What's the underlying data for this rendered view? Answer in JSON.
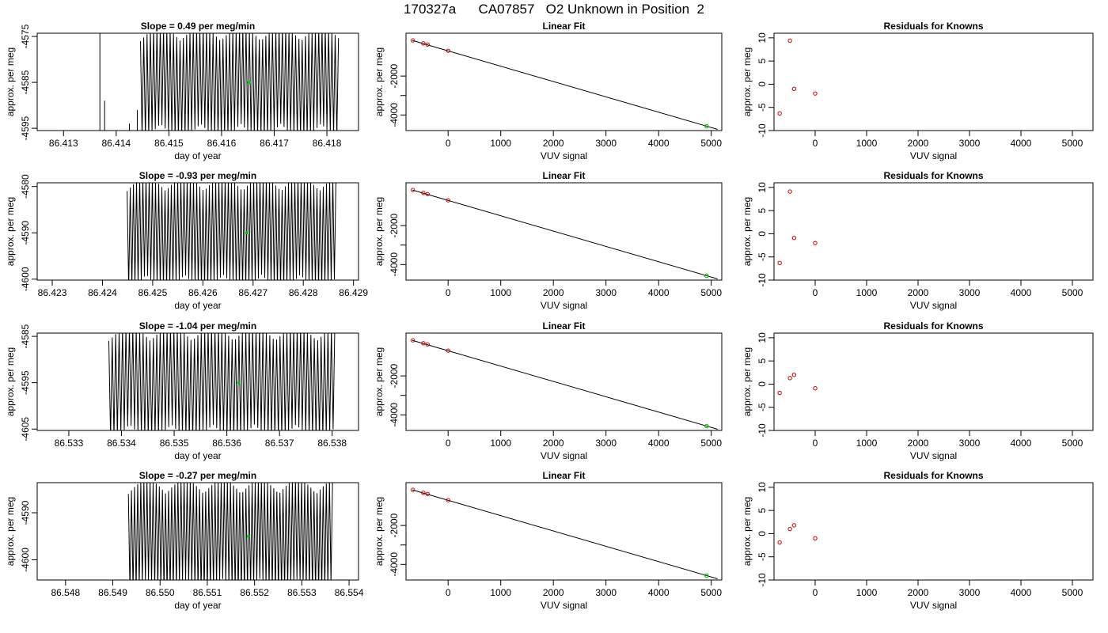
{
  "figure": {
    "title": "170327a      CA07857   O2 Unknown in Position  2"
  },
  "colors": {
    "trace": "#000000",
    "known_points": "#cc0000",
    "unknown_point": "#00cc00",
    "fit_line": "#000000",
    "axes": "#000000"
  },
  "chart_data": [
    {
      "type": "line",
      "row": 1,
      "panel": "time-series",
      "title": "Slope =  0.49  per meg/min",
      "xlabel": "day of year",
      "ylabel": "approx. per meg",
      "xlim": [
        86.4125,
        86.4186
      ],
      "ylim": [
        -4595.5,
        -4574.3
      ],
      "xticks": [
        86.413,
        86.414,
        86.415,
        86.416,
        86.417,
        86.418
      ],
      "xtick_labels": [
        "86.413",
        "86.414",
        "86.415",
        "86.416",
        "86.417",
        "86.418"
      ],
      "yticks": [
        -4595,
        -4585,
        -4575
      ],
      "ytick_labels": [
        "-4595",
        "-4585",
        "-4575"
      ],
      "trace": {
        "x_start": 86.41446,
        "x_end": 86.41822,
        "cycles": 60,
        "center": -4585,
        "amplitude": 12,
        "early_spikes": [
          {
            "x": 86.41369,
            "y_top": -4570,
            "y_bottom": -4620
          },
          {
            "x": 86.41378,
            "y_top": -4589,
            "y_bottom": -4600
          },
          {
            "x": 86.41396,
            "y_top": -4597,
            "y_bottom": -4620
          },
          {
            "x": 86.41425,
            "y_top": -4594,
            "y_bottom": -4600
          },
          {
            "x": 86.4144,
            "y_top": -4591,
            "y_bottom": -4598
          }
        ]
      },
      "marker": {
        "x": 86.41652,
        "y": -4585
      }
    },
    {
      "type": "scatter",
      "row": 1,
      "panel": "linear-fit",
      "title": "Linear Fit",
      "xlabel": "VUV signal",
      "ylabel": "approx. per meg",
      "xlim": [
        -800,
        5200
      ],
      "ylim": [
        -4800,
        200
      ],
      "xticks": [
        0,
        1000,
        2000,
        3000,
        4000,
        5000
      ],
      "xtick_labels": [
        "0",
        "1000",
        "2000",
        "3000",
        "4000",
        "5000"
      ],
      "yticks": [
        -4000,
        -3000,
        -2000
      ],
      "ytick_labels": [
        "-4000",
        "",
        "-2000"
      ],
      "fit_line": {
        "x": [
          -680,
          5120
        ],
        "y": [
          -170,
          -4740
        ]
      },
      "knowns": [
        {
          "x": -670,
          "y": -170
        },
        {
          "x": -470,
          "y": -320
        },
        {
          "x": -390,
          "y": -380
        },
        {
          "x": 0,
          "y": -700
        }
      ],
      "unknown": {
        "x": 4910,
        "y": -4575
      }
    },
    {
      "type": "scatter",
      "row": 1,
      "panel": "residuals",
      "title": "Residuals for Knowns",
      "xlabel": "VUV signal",
      "ylabel": "approx. per meg",
      "xlim": [
        -800,
        5400
      ],
      "ylim": [
        -10,
        11
      ],
      "xticks": [
        0,
        1000,
        2000,
        3000,
        4000,
        5000
      ],
      "xtick_labels": [
        "0",
        "1000",
        "2000",
        "3000",
        "4000",
        "5000"
      ],
      "yticks": [
        -10,
        -5,
        0,
        5,
        10
      ],
      "ytick_labels": [
        "-10",
        "-5",
        "0",
        "5",
        "10"
      ],
      "points": [
        {
          "x": -690,
          "y": -6.3
        },
        {
          "x": -490,
          "y": 9.4
        },
        {
          "x": -410,
          "y": -1
        },
        {
          "x": 0,
          "y": -2
        }
      ]
    },
    {
      "type": "line",
      "row": 2,
      "panel": "time-series",
      "title": "Slope =  -0.93  per meg/min",
      "xlabel": "day of year",
      "ylabel": "approx. per meg",
      "xlim": [
        86.4227,
        86.4291
      ],
      "ylim": [
        -4600.2,
        -4579.2
      ],
      "xticks": [
        86.423,
        86.424,
        86.425,
        86.426,
        86.427,
        86.428,
        86.429
      ],
      "xtick_labels": [
        "86.423",
        "86.424",
        "86.425",
        "86.426",
        "86.427",
        "86.428",
        "86.429"
      ],
      "yticks": [
        -4600,
        -4590,
        -4580
      ],
      "ytick_labels": [
        "-4600",
        "-4590",
        "-4580"
      ],
      "trace": {
        "x_start": 86.42449,
        "x_end": 86.42865,
        "cycles": 66,
        "center": -4590,
        "amplitude": 12,
        "early_spikes": []
      },
      "marker": {
        "x": 86.42688,
        "y": -4590
      }
    },
    {
      "type": "scatter",
      "row": 2,
      "panel": "linear-fit",
      "title": "Linear Fit",
      "xlabel": "VUV signal",
      "ylabel": "approx. per meg",
      "xlim": [
        -800,
        5200
      ],
      "ylim": [
        -4800,
        200
      ],
      "xticks": [
        0,
        1000,
        2000,
        3000,
        4000,
        5000
      ],
      "xtick_labels": [
        "0",
        "1000",
        "2000",
        "3000",
        "4000",
        "5000"
      ],
      "yticks": [
        -4000,
        -3000,
        -2000
      ],
      "ytick_labels": [
        "-4000",
        "",
        "-2000"
      ],
      "fit_line": {
        "x": [
          -680,
          5120
        ],
        "y": [
          -170,
          -4740
        ]
      },
      "knowns": [
        {
          "x": -670,
          "y": -170
        },
        {
          "x": -470,
          "y": -320
        },
        {
          "x": -390,
          "y": -380
        },
        {
          "x": 0,
          "y": -700
        }
      ],
      "unknown": {
        "x": 4910,
        "y": -4575
      }
    },
    {
      "type": "scatter",
      "row": 2,
      "panel": "residuals",
      "title": "Residuals for Knowns",
      "xlabel": "VUV signal",
      "ylabel": "approx. per meg",
      "xlim": [
        -800,
        5400
      ],
      "ylim": [
        -10,
        11
      ],
      "xticks": [
        0,
        1000,
        2000,
        3000,
        4000,
        5000
      ],
      "xtick_labels": [
        "0",
        "1000",
        "2000",
        "3000",
        "4000",
        "5000"
      ],
      "yticks": [
        -10,
        -5,
        0,
        5,
        10
      ],
      "ytick_labels": [
        "-10",
        "-5",
        "0",
        "5",
        "10"
      ],
      "points": [
        {
          "x": -690,
          "y": -6.3
        },
        {
          "x": -490,
          "y": 9.1
        },
        {
          "x": -410,
          "y": -0.9
        },
        {
          "x": 0,
          "y": -2
        }
      ]
    },
    {
      "type": "line",
      "row": 3,
      "panel": "time-series",
      "title": "Slope =  -1.04  per meg/min",
      "xlabel": "day of year",
      "ylabel": "approx. per meg",
      "xlim": [
        86.5324,
        86.5385
      ],
      "ylim": [
        -4605.3,
        -4584.3
      ],
      "xticks": [
        86.533,
        86.534,
        86.535,
        86.536,
        86.537,
        86.538
      ],
      "xtick_labels": [
        "86.533",
        "86.534",
        "86.535",
        "86.536",
        "86.537",
        "86.538"
      ],
      "yticks": [
        -4605,
        -4595,
        -4585
      ],
      "ytick_labels": [
        "-4605",
        "-4595",
        "-4585"
      ],
      "trace": {
        "x_start": 86.53376,
        "x_end": 86.53805,
        "cycles": 66,
        "center": -4595,
        "amplitude": 12,
        "early_spikes": []
      },
      "marker": {
        "x": 86.53622,
        "y": -4595
      }
    },
    {
      "type": "scatter",
      "row": 3,
      "panel": "linear-fit",
      "title": "Linear Fit",
      "xlabel": "VUV signal",
      "ylabel": "approx. per meg",
      "xlim": [
        -800,
        5200
      ],
      "ylim": [
        -4800,
        200
      ],
      "xticks": [
        0,
        1000,
        2000,
        3000,
        4000,
        5000
      ],
      "xtick_labels": [
        "0",
        "1000",
        "2000",
        "3000",
        "4000",
        "5000"
      ],
      "yticks": [
        -4000,
        -3000,
        -2000
      ],
      "ytick_labels": [
        "-4000",
        "",
        "-2000"
      ],
      "fit_line": {
        "x": [
          -680,
          5120
        ],
        "y": [
          -170,
          -4740
        ]
      },
      "knowns": [
        {
          "x": -670,
          "y": -170
        },
        {
          "x": -470,
          "y": -320
        },
        {
          "x": -390,
          "y": -380
        },
        {
          "x": 0,
          "y": -700
        }
      ],
      "unknown": {
        "x": 4910,
        "y": -4575
      }
    },
    {
      "type": "scatter",
      "row": 3,
      "panel": "residuals",
      "title": "Residuals for Knowns",
      "xlabel": "VUV signal",
      "ylabel": "approx. per meg",
      "xlim": [
        -800,
        5400
      ],
      "ylim": [
        -10,
        11
      ],
      "xticks": [
        0,
        1000,
        2000,
        3000,
        4000,
        5000
      ],
      "xtick_labels": [
        "0",
        "1000",
        "2000",
        "3000",
        "4000",
        "5000"
      ],
      "yticks": [
        -10,
        -5,
        0,
        5,
        10
      ],
      "ytick_labels": [
        "-10",
        "-5",
        "0",
        "5",
        "10"
      ],
      "points": [
        {
          "x": -690,
          "y": -1.9
        },
        {
          "x": -490,
          "y": 1.3
        },
        {
          "x": -410,
          "y": 2
        },
        {
          "x": 0,
          "y": -0.9
        }
      ]
    },
    {
      "type": "line",
      "row": 4,
      "panel": "time-series",
      "title": "Slope =  -0.27  per meg/min",
      "xlabel": "day of year",
      "ylabel": "approx. per meg",
      "xlim": [
        86.5474,
        86.5542
      ],
      "ylim": [
        -4604.3,
        -4583.6
      ],
      "xticks": [
        86.548,
        86.549,
        86.55,
        86.551,
        86.552,
        86.553,
        86.554
      ],
      "xtick_labels": [
        "86.548",
        "86.549",
        "86.550",
        "86.551",
        "86.552",
        "86.553",
        "86.554"
      ],
      "yticks": [
        -4600,
        -4590
      ],
      "ytick_labels": [
        "-4600",
        "-4590"
      ],
      "trace": {
        "x_start": 86.54933,
        "x_end": 86.55365,
        "cycles": 66,
        "center": -4595,
        "amplitude": 12,
        "early_spikes": []
      },
      "marker": {
        "x": 86.55187,
        "y": -4595
      }
    },
    {
      "type": "scatter",
      "row": 4,
      "panel": "linear-fit",
      "title": "Linear Fit",
      "xlabel": "VUV signal",
      "ylabel": "approx. per meg",
      "xlim": [
        -800,
        5200
      ],
      "ylim": [
        -4800,
        200
      ],
      "xticks": [
        0,
        1000,
        2000,
        3000,
        4000,
        5000
      ],
      "xtick_labels": [
        "0",
        "1000",
        "2000",
        "3000",
        "4000",
        "5000"
      ],
      "yticks": [
        -4000,
        -3000,
        -2000
      ],
      "ytick_labels": [
        "-4000",
        "",
        "-2000"
      ],
      "fit_line": {
        "x": [
          -680,
          5120
        ],
        "y": [
          -170,
          -4740
        ]
      },
      "knowns": [
        {
          "x": -670,
          "y": -170
        },
        {
          "x": -470,
          "y": -320
        },
        {
          "x": -390,
          "y": -380
        },
        {
          "x": 0,
          "y": -700
        }
      ],
      "unknown": {
        "x": 4910,
        "y": -4575
      }
    },
    {
      "type": "scatter",
      "row": 4,
      "panel": "residuals",
      "title": "Residuals for Knowns",
      "xlabel": "VUV signal",
      "ylabel": "approx. per meg",
      "xlim": [
        -800,
        5400
      ],
      "ylim": [
        -10,
        11
      ],
      "xticks": [
        0,
        1000,
        2000,
        3000,
        4000,
        5000
      ],
      "xtick_labels": [
        "0",
        "1000",
        "2000",
        "3000",
        "4000",
        "5000"
      ],
      "yticks": [
        -10,
        -5,
        0,
        5,
        10
      ],
      "ytick_labels": [
        "-10",
        "-5",
        "0",
        "5",
        "10"
      ],
      "points": [
        {
          "x": -690,
          "y": -1.9
        },
        {
          "x": -490,
          "y": 1
        },
        {
          "x": -410,
          "y": 1.8
        },
        {
          "x": 0,
          "y": -1
        }
      ]
    }
  ]
}
